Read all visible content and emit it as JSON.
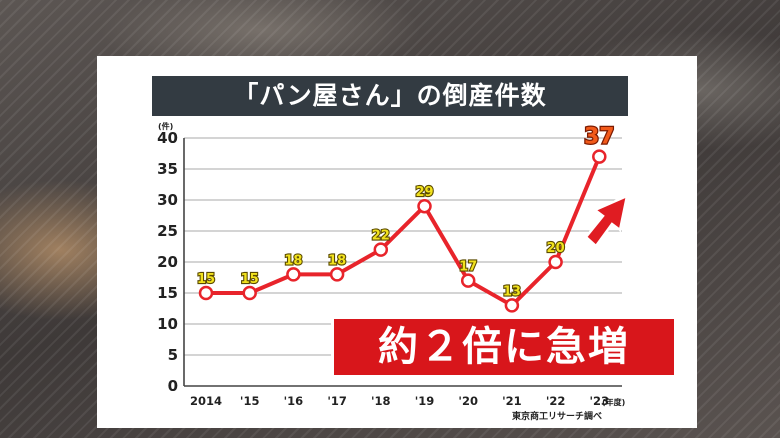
{
  "title": "「パン屋さん」の倒産件数",
  "unit": "(件)",
  "x_suffix": "(年度)",
  "source": "東京商工リサーチ調べ",
  "callout": "約２倍に急増",
  "colors": {
    "line": "#e8242b",
    "title_bg": "#333b42",
    "callout_bg": "#d8161b",
    "label": "#f2e21e",
    "label_hi": "#f25a1a"
  },
  "chart_data": {
    "type": "line",
    "title": "「パン屋さん」の倒産件数",
    "ylabel": "(件)",
    "categories": [
      "2014",
      "'15",
      "'16",
      "'17",
      "'18",
      "'19",
      "'20",
      "'21",
      "'22",
      "'23"
    ],
    "values": [
      15,
      15,
      18,
      18,
      22,
      29,
      17,
      13,
      20,
      37
    ],
    "ylim": [
      0,
      40
    ],
    "yticks": [
      0,
      5,
      10,
      15,
      20,
      25,
      30,
      35,
      40
    ],
    "grid": true,
    "legend": "none"
  }
}
